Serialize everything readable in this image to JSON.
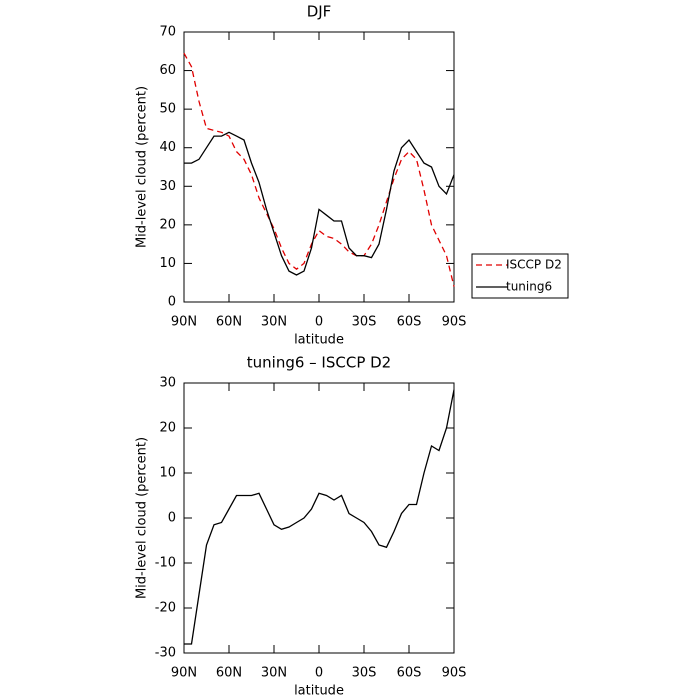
{
  "chart_data": [
    {
      "type": "line",
      "title": "DJF",
      "xlabel": "latitude",
      "ylabel": "Mid-level cloud (percent)",
      "x": [
        90,
        85,
        80,
        75,
        70,
        65,
        60,
        55,
        50,
        45,
        40,
        35,
        30,
        25,
        20,
        15,
        10,
        5,
        0,
        -5,
        -10,
        -15,
        -20,
        -25,
        -30,
        -35,
        -40,
        -45,
        -50,
        -55,
        -60,
        -65,
        -70,
        -75,
        -80,
        -85,
        -90
      ],
      "xlim": [
        90,
        -90
      ],
      "xticks": [
        {
          "value": 90,
          "label": "90N"
        },
        {
          "value": 60,
          "label": "60N"
        },
        {
          "value": 30,
          "label": "30N"
        },
        0,
        {
          "value": -30,
          "label": "30S"
        },
        {
          "value": -60,
          "label": "60S"
        },
        {
          "value": -90,
          "label": "90S"
        }
      ],
      "ylim": [
        0,
        70
      ],
      "yticks": [
        0,
        10,
        20,
        30,
        40,
        50,
        60,
        70
      ],
      "legend": "right",
      "series": [
        {
          "name": "ISCCP D2",
          "color": "#e00000",
          "dash": true,
          "values": [
            64.5,
            61,
            52,
            45,
            44.5,
            44,
            43,
            39,
            37,
            33,
            27,
            23,
            19,
            14,
            10,
            8.5,
            10,
            15,
            18.5,
            17,
            16.5,
            15,
            13,
            12,
            12,
            15,
            20,
            26,
            32,
            37,
            39,
            37,
            29,
            20,
            16,
            12,
            4
          ]
        },
        {
          "name": "tuning6",
          "color": "#000000",
          "dash": false,
          "values": [
            36,
            36,
            37,
            40,
            43,
            43,
            44,
            43,
            42,
            36,
            31,
            24,
            18,
            12,
            8,
            7,
            8,
            14,
            24,
            22.5,
            21,
            21,
            14,
            12,
            12,
            11.5,
            15,
            24,
            34,
            40,
            42,
            39,
            36,
            35,
            30,
            28,
            33
          ]
        }
      ]
    },
    {
      "type": "line",
      "title": "tuning6 – ISCCP D2",
      "xlabel": "latitude",
      "ylabel": "Mid-level cloud (percent)",
      "x": [
        90,
        85,
        80,
        75,
        70,
        65,
        60,
        55,
        50,
        45,
        40,
        35,
        30,
        25,
        20,
        15,
        10,
        5,
        0,
        -5,
        -10,
        -15,
        -20,
        -25,
        -30,
        -35,
        -40,
        -45,
        -50,
        -55,
        -60,
        -65,
        -70,
        -75,
        -80,
        -85,
        -90
      ],
      "xlim": [
        90,
        -90
      ],
      "xticks": [
        {
          "value": 90,
          "label": "90N"
        },
        {
          "value": 60,
          "label": "60N"
        },
        {
          "value": 30,
          "label": "30N"
        },
        0,
        {
          "value": -30,
          "label": "30S"
        },
        {
          "value": -60,
          "label": "60S"
        },
        {
          "value": -90,
          "label": "90S"
        }
      ],
      "ylim": [
        -30,
        30
      ],
      "yticks": [
        -30,
        -20,
        -10,
        0,
        10,
        20,
        30
      ],
      "series": [
        {
          "color": "#000000",
          "dash": false,
          "values": [
            -28,
            -28,
            -17,
            -6,
            -1.5,
            -1,
            2,
            5,
            5,
            5,
            5.5,
            2,
            -1.5,
            -2.5,
            -2,
            -1,
            0,
            2,
            5.5,
            5,
            4,
            5,
            1,
            0,
            -1,
            -3,
            -6,
            -6.5,
            -3,
            1,
            3,
            3,
            10,
            16,
            15,
            20,
            28.5
          ]
        }
      ]
    }
  ]
}
